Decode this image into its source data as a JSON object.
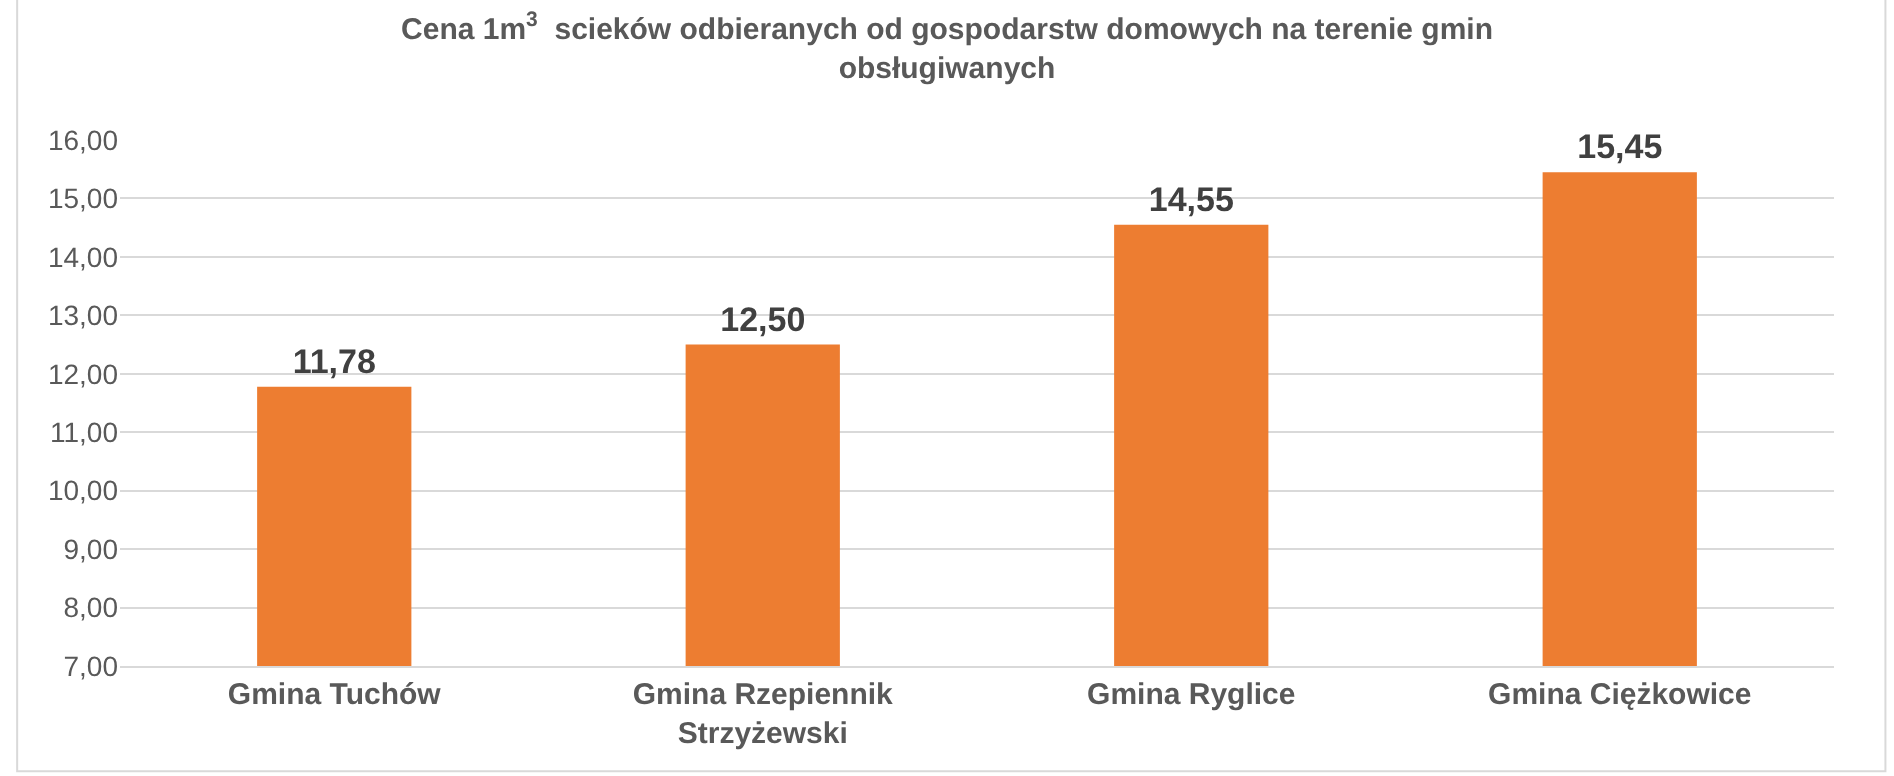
{
  "chart_data": {
    "type": "bar",
    "title": "Cena 1m$^{3}$  scieków odbieranych od gospodarstw domowych na terenie gmin obsługiwanych",
    "categories": [
      "Gmina Tuchów",
      "Gmina Rzepiennik Strzyżewski",
      "Gmina Ryglice",
      "Gmina Ciężkowice"
    ],
    "values": [
      11.78,
      12.5,
      14.55,
      15.45
    ],
    "value_labels": [
      "11,78",
      "12,50",
      "14,55",
      "15,45"
    ],
    "color": "#ed7d31",
    "ylim": [
      7,
      16
    ],
    "yticks": [
      {
        "value": 7,
        "label": "7,00"
      },
      {
        "value": 8,
        "label": "8,00"
      },
      {
        "value": 9,
        "label": "9,00"
      },
      {
        "value": 10,
        "label": "10,00"
      },
      {
        "value": 11,
        "label": "11,00"
      },
      {
        "value": 12,
        "label": "12,00"
      },
      {
        "value": 13,
        "label": "13,00"
      },
      {
        "value": 14,
        "label": "14,00"
      },
      {
        "value": 15,
        "label": "15,00"
      },
      {
        "value": 16,
        "label": "16,00"
      }
    ],
    "grid": "y"
  }
}
